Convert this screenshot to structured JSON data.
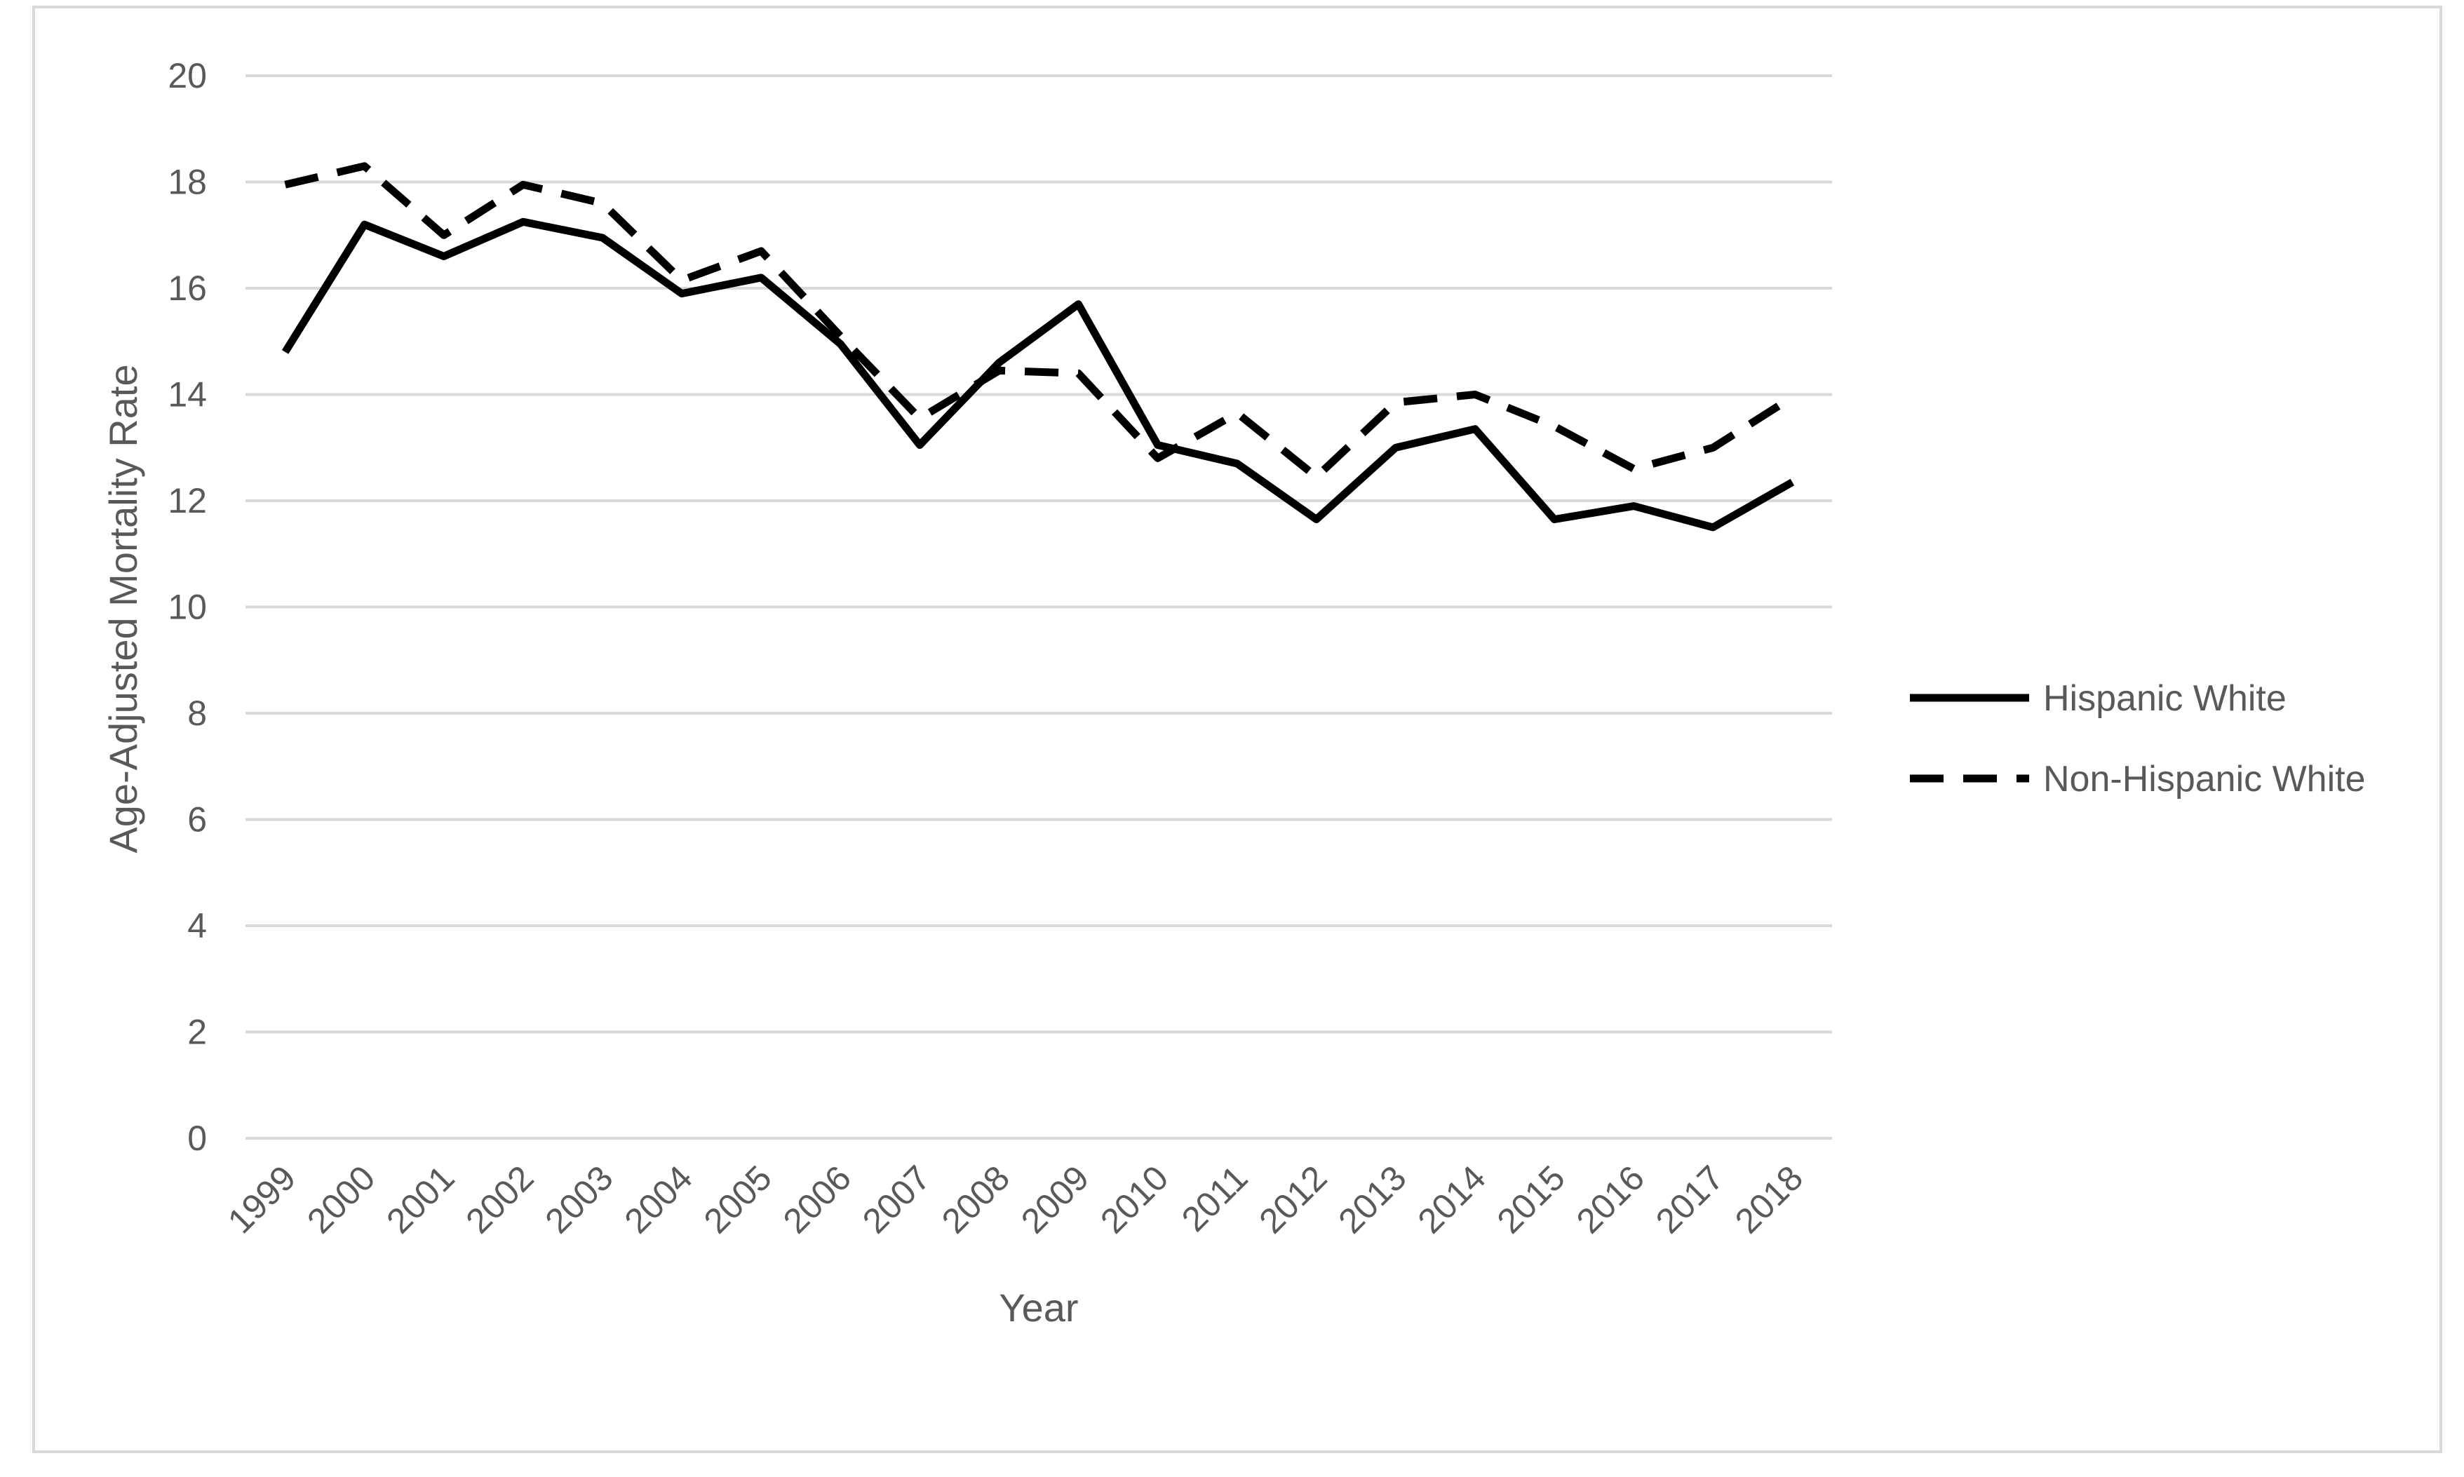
{
  "chart_data": {
    "type": "line",
    "title": "",
    "xlabel": "Year",
    "ylabel": "Age-Adjusted Mortality Rate",
    "categories": [
      "1999",
      "2000",
      "2001",
      "2002",
      "2003",
      "2004",
      "2005",
      "2006",
      "2007",
      "2008",
      "2009",
      "2010",
      "2011",
      "2012",
      "2013",
      "2014",
      "2015",
      "2016",
      "2017",
      "2018"
    ],
    "yticks": [
      "0",
      "2",
      "4",
      "6",
      "8",
      "10",
      "12",
      "14",
      "16",
      "18",
      "20"
    ],
    "ylim": [
      0,
      20
    ],
    "grid": true,
    "legend_position": "right",
    "series": [
      {
        "name": "Hispanic White",
        "style": "solid",
        "color": "#000000",
        "values": [
          14.8,
          17.2,
          16.6,
          17.25,
          16.95,
          15.9,
          16.2,
          14.95,
          13.05,
          14.6,
          15.7,
          13.05,
          12.7,
          11.65,
          13.0,
          13.35,
          11.65,
          11.9,
          11.5,
          12.35
        ]
      },
      {
        "name": "Non-Hispanic White",
        "style": "dashed",
        "color": "#000000",
        "values": [
          17.95,
          18.3,
          17.0,
          17.95,
          17.6,
          16.15,
          16.7,
          15.1,
          13.55,
          14.45,
          14.4,
          12.8,
          13.65,
          12.45,
          13.85,
          14.0,
          13.4,
          12.6,
          13.0,
          13.95
        ]
      }
    ]
  }
}
